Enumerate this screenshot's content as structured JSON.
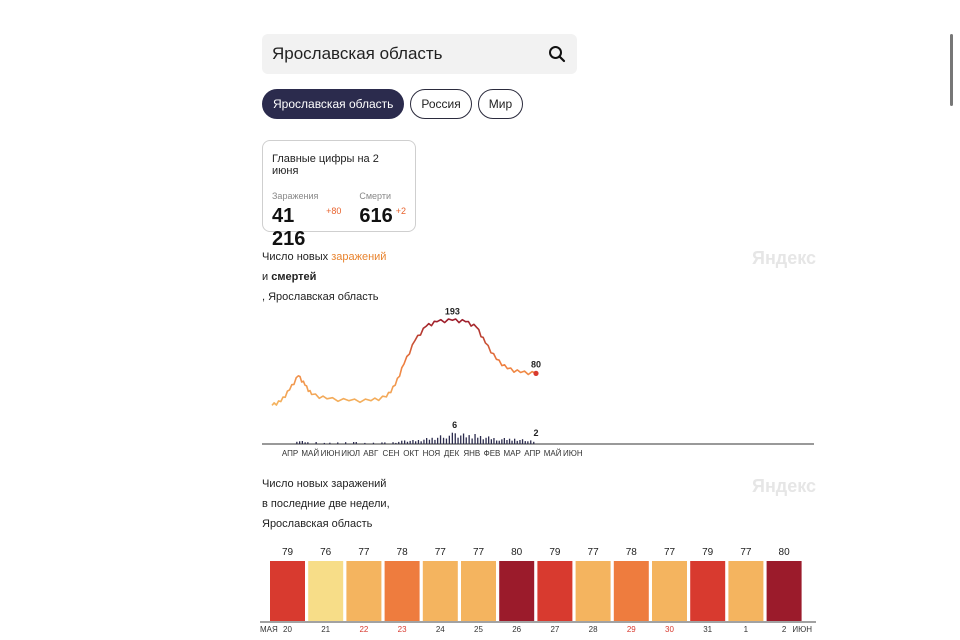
{
  "search": {
    "value": "Ярославская область"
  },
  "tabs": [
    {
      "label": "Ярославская область",
      "active": true
    },
    {
      "label": "Россия",
      "active": false
    },
    {
      "label": "Мир",
      "active": false
    }
  ],
  "summary": {
    "title": "Главные цифры на 2 июня",
    "infections": {
      "label": "Заражения",
      "value": "41 216",
      "delta": "+80"
    },
    "deaths": {
      "label": "Смерти",
      "value": "616",
      "delta": "+2"
    }
  },
  "watermark": "Яндекс",
  "chart1": {
    "title_line1_prefix": "Число новых",
    "title_line1_accent": "заражений",
    "title_line2_prefix": "и",
    "title_line2_bold": "смертей",
    "title_line3": ", Ярославская область"
  },
  "chart2": {
    "title_lines": [
      "Число новых заражений",
      "в последние две недели,",
      "Ярославская область"
    ]
  },
  "colors": {
    "dark": "#9b1b2b",
    "red": "#d83a2f",
    "orange": "#ee7c3e",
    "light": "#f4b45f",
    "pale": "#f7dd88"
  },
  "chart_data": [
    {
      "type": "line",
      "x_tick_labels": [
        "АПР",
        "МАЙ",
        "ИЮН",
        "ИЮЛ",
        "АВГ",
        "СЕН",
        "ОКТ",
        "НОЯ",
        "ДЕК",
        "ЯНВ",
        "ФЕВ",
        "МАР",
        "АПР",
        "МАЙ",
        "ИЮН"
      ],
      "series": [
        {
          "values": [
            [
              0,
              12
            ],
            [
              0.4,
              20
            ],
            [
              0.8,
              45
            ],
            [
              1.2,
              75
            ],
            [
              1.5,
              55
            ],
            [
              1.8,
              35
            ],
            [
              2.5,
              26
            ],
            [
              3.5,
              22
            ],
            [
              4.5,
              22
            ],
            [
              5.2,
              30
            ],
            [
              5.6,
              55
            ],
            [
              6.0,
              100
            ],
            [
              6.5,
              150
            ],
            [
              7.0,
              180
            ],
            [
              7.5,
              190
            ],
            [
              8.2,
              193
            ],
            [
              8.8,
              190
            ],
            [
              9.3,
              178
            ],
            [
              9.7,
              145
            ],
            [
              10.2,
              110
            ],
            [
              10.7,
              90
            ],
            [
              11.3,
              82
            ],
            [
              12.0,
              80
            ]
          ],
          "annotations": [
            {
              "x": 8.2,
              "label": "193"
            },
            {
              "x": 12.0,
              "label": "80"
            }
          ]
        },
        {
          "values": [
            [
              1.1,
              2
            ],
            [
              1.6,
              1
            ],
            [
              2.6,
              1
            ],
            [
              3.8,
              1
            ],
            [
              5.1,
              1
            ],
            [
              5.6,
              1
            ],
            [
              6.0,
              2
            ],
            [
              6.5,
              2
            ],
            [
              7.0,
              3
            ],
            [
              7.5,
              4
            ],
            [
              7.9,
              5
            ],
            [
              8.3,
              6
            ],
            [
              8.8,
              5
            ],
            [
              9.2,
              5
            ],
            [
              9.7,
              4
            ],
            [
              10.3,
              3
            ],
            [
              11.0,
              3
            ],
            [
              11.6,
              2
            ],
            [
              12.0,
              2
            ]
          ],
          "annotations": [
            {
              "x": 8.3,
              "label": "6"
            },
            {
              "x": 12.0,
              "label": "2"
            }
          ]
        }
      ]
    },
    {
      "type": "bar",
      "categories": [
        "20",
        "21",
        "22",
        "23",
        "24",
        "25",
        "26",
        "27",
        "28",
        "29",
        "30",
        "31",
        "1",
        "2"
      ],
      "weekend": [
        false,
        false,
        true,
        true,
        false,
        false,
        false,
        false,
        false,
        true,
        true,
        false,
        false,
        false
      ],
      "month_start_label": "МАЯ",
      "month_end_label": "ИЮН",
      "values": [
        79,
        76,
        77,
        78,
        77,
        77,
        80,
        79,
        77,
        78,
        77,
        79,
        77,
        80
      ],
      "bar_colors": [
        "red",
        "pale",
        "light",
        "orange",
        "light",
        "light",
        "dark",
        "red",
        "light",
        "orange",
        "light",
        "red",
        "light",
        "dark"
      ]
    }
  ]
}
